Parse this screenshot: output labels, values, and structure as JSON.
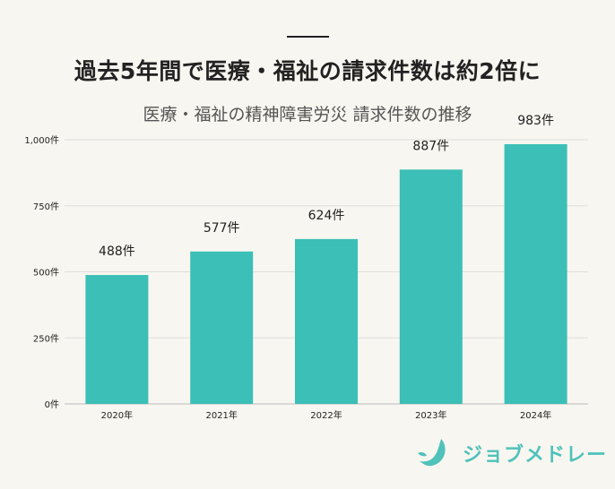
{
  "header": {
    "title": "過去5年間で医療・福祉の請求件数は約2倍に"
  },
  "chart_data": {
    "type": "bar",
    "title": "医療・福祉の精神障害労災 請求件数の推移",
    "xlabel": "",
    "ylabel": "",
    "categories": [
      "2020年",
      "2021年",
      "2022年",
      "2023年",
      "2024年"
    ],
    "values": [
      488,
      577,
      624,
      887,
      983
    ],
    "data_labels": [
      "488件",
      "577件",
      "624件",
      "887件",
      "983件"
    ],
    "ylim": [
      0,
      1000
    ],
    "yticks": [
      0,
      250,
      500,
      750,
      1000
    ],
    "ytick_labels": [
      "0件",
      "250件",
      "500件",
      "750件",
      "1,000件"
    ],
    "grid": true,
    "bar_color": "#3bbfb7"
  },
  "brand": {
    "name": "ジョブメドレー",
    "color": "#4fc2bb"
  }
}
